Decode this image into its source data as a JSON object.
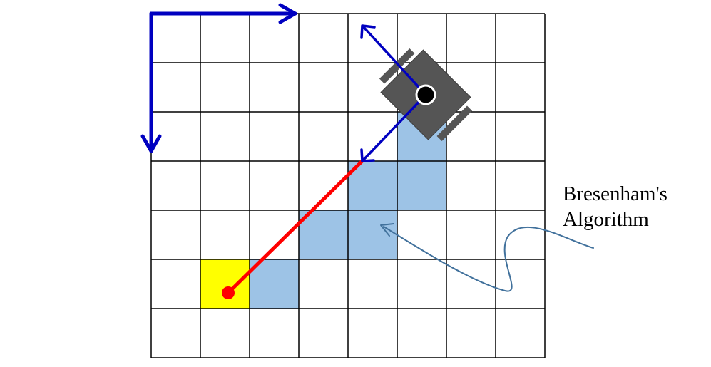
{
  "annotation": {
    "line1": "Bresenham's",
    "line2": "Algorithm"
  },
  "grid": {
    "columns": 8,
    "rows": 7,
    "line_color": "#000000",
    "background_color": "#ffffff"
  },
  "ray_cells": [
    {
      "col": 5,
      "row": 2
    },
    {
      "col": 4,
      "row": 3
    },
    {
      "col": 5,
      "row": 3
    },
    {
      "col": 3,
      "row": 4
    },
    {
      "col": 4,
      "row": 4
    },
    {
      "col": 2,
      "row": 5
    }
  ],
  "target_cell": {
    "col": 1,
    "row": 5
  },
  "colors": {
    "ray_cell_fill": "#9dc3e6",
    "target_cell_fill": "#ffff00",
    "axis_blue": "#0000c0",
    "robot_body": "#555555",
    "laser_ray": "#ff0000",
    "annotation_arrow": "#41719c",
    "label_text": "#000000"
  },
  "icons": {
    "robot": "robot-icon",
    "target": "target-point-icon"
  }
}
